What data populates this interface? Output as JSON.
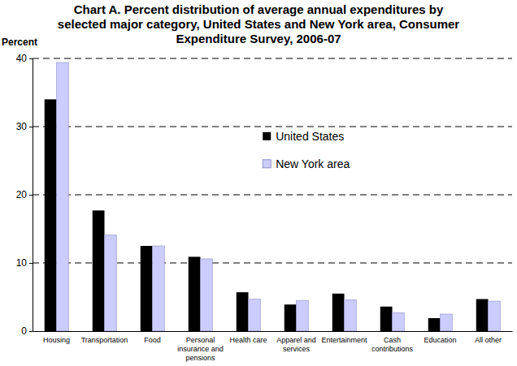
{
  "chart_data": {
    "type": "bar",
    "title": "Chart A. Percent distribution of average annual expenditures by selected major category, United States and New York area, Consumer Expenditure Survey, 2006-07",
    "y_label": "Percent",
    "categories": [
      "Housing",
      "Transportation",
      "Food",
      "Personal insurance and pensions",
      "Health care",
      "Apparel and services",
      "Entertainment",
      "Cash contributions",
      "Education",
      "All other"
    ],
    "series": [
      {
        "name": "United States",
        "color": "#000000",
        "values": [
          34.0,
          17.7,
          12.5,
          10.9,
          5.7,
          3.9,
          5.5,
          3.6,
          1.9,
          4.7
        ]
      },
      {
        "name": "New York area",
        "color": "#ccccff",
        "values": [
          39.4,
          14.1,
          12.5,
          10.6,
          4.7,
          4.5,
          4.6,
          2.7,
          2.5,
          4.4
        ]
      }
    ],
    "ylim": [
      0,
      40
    ],
    "yticks": [
      0,
      10,
      20,
      30,
      40
    ],
    "grid": true,
    "legend": "upper right"
  }
}
